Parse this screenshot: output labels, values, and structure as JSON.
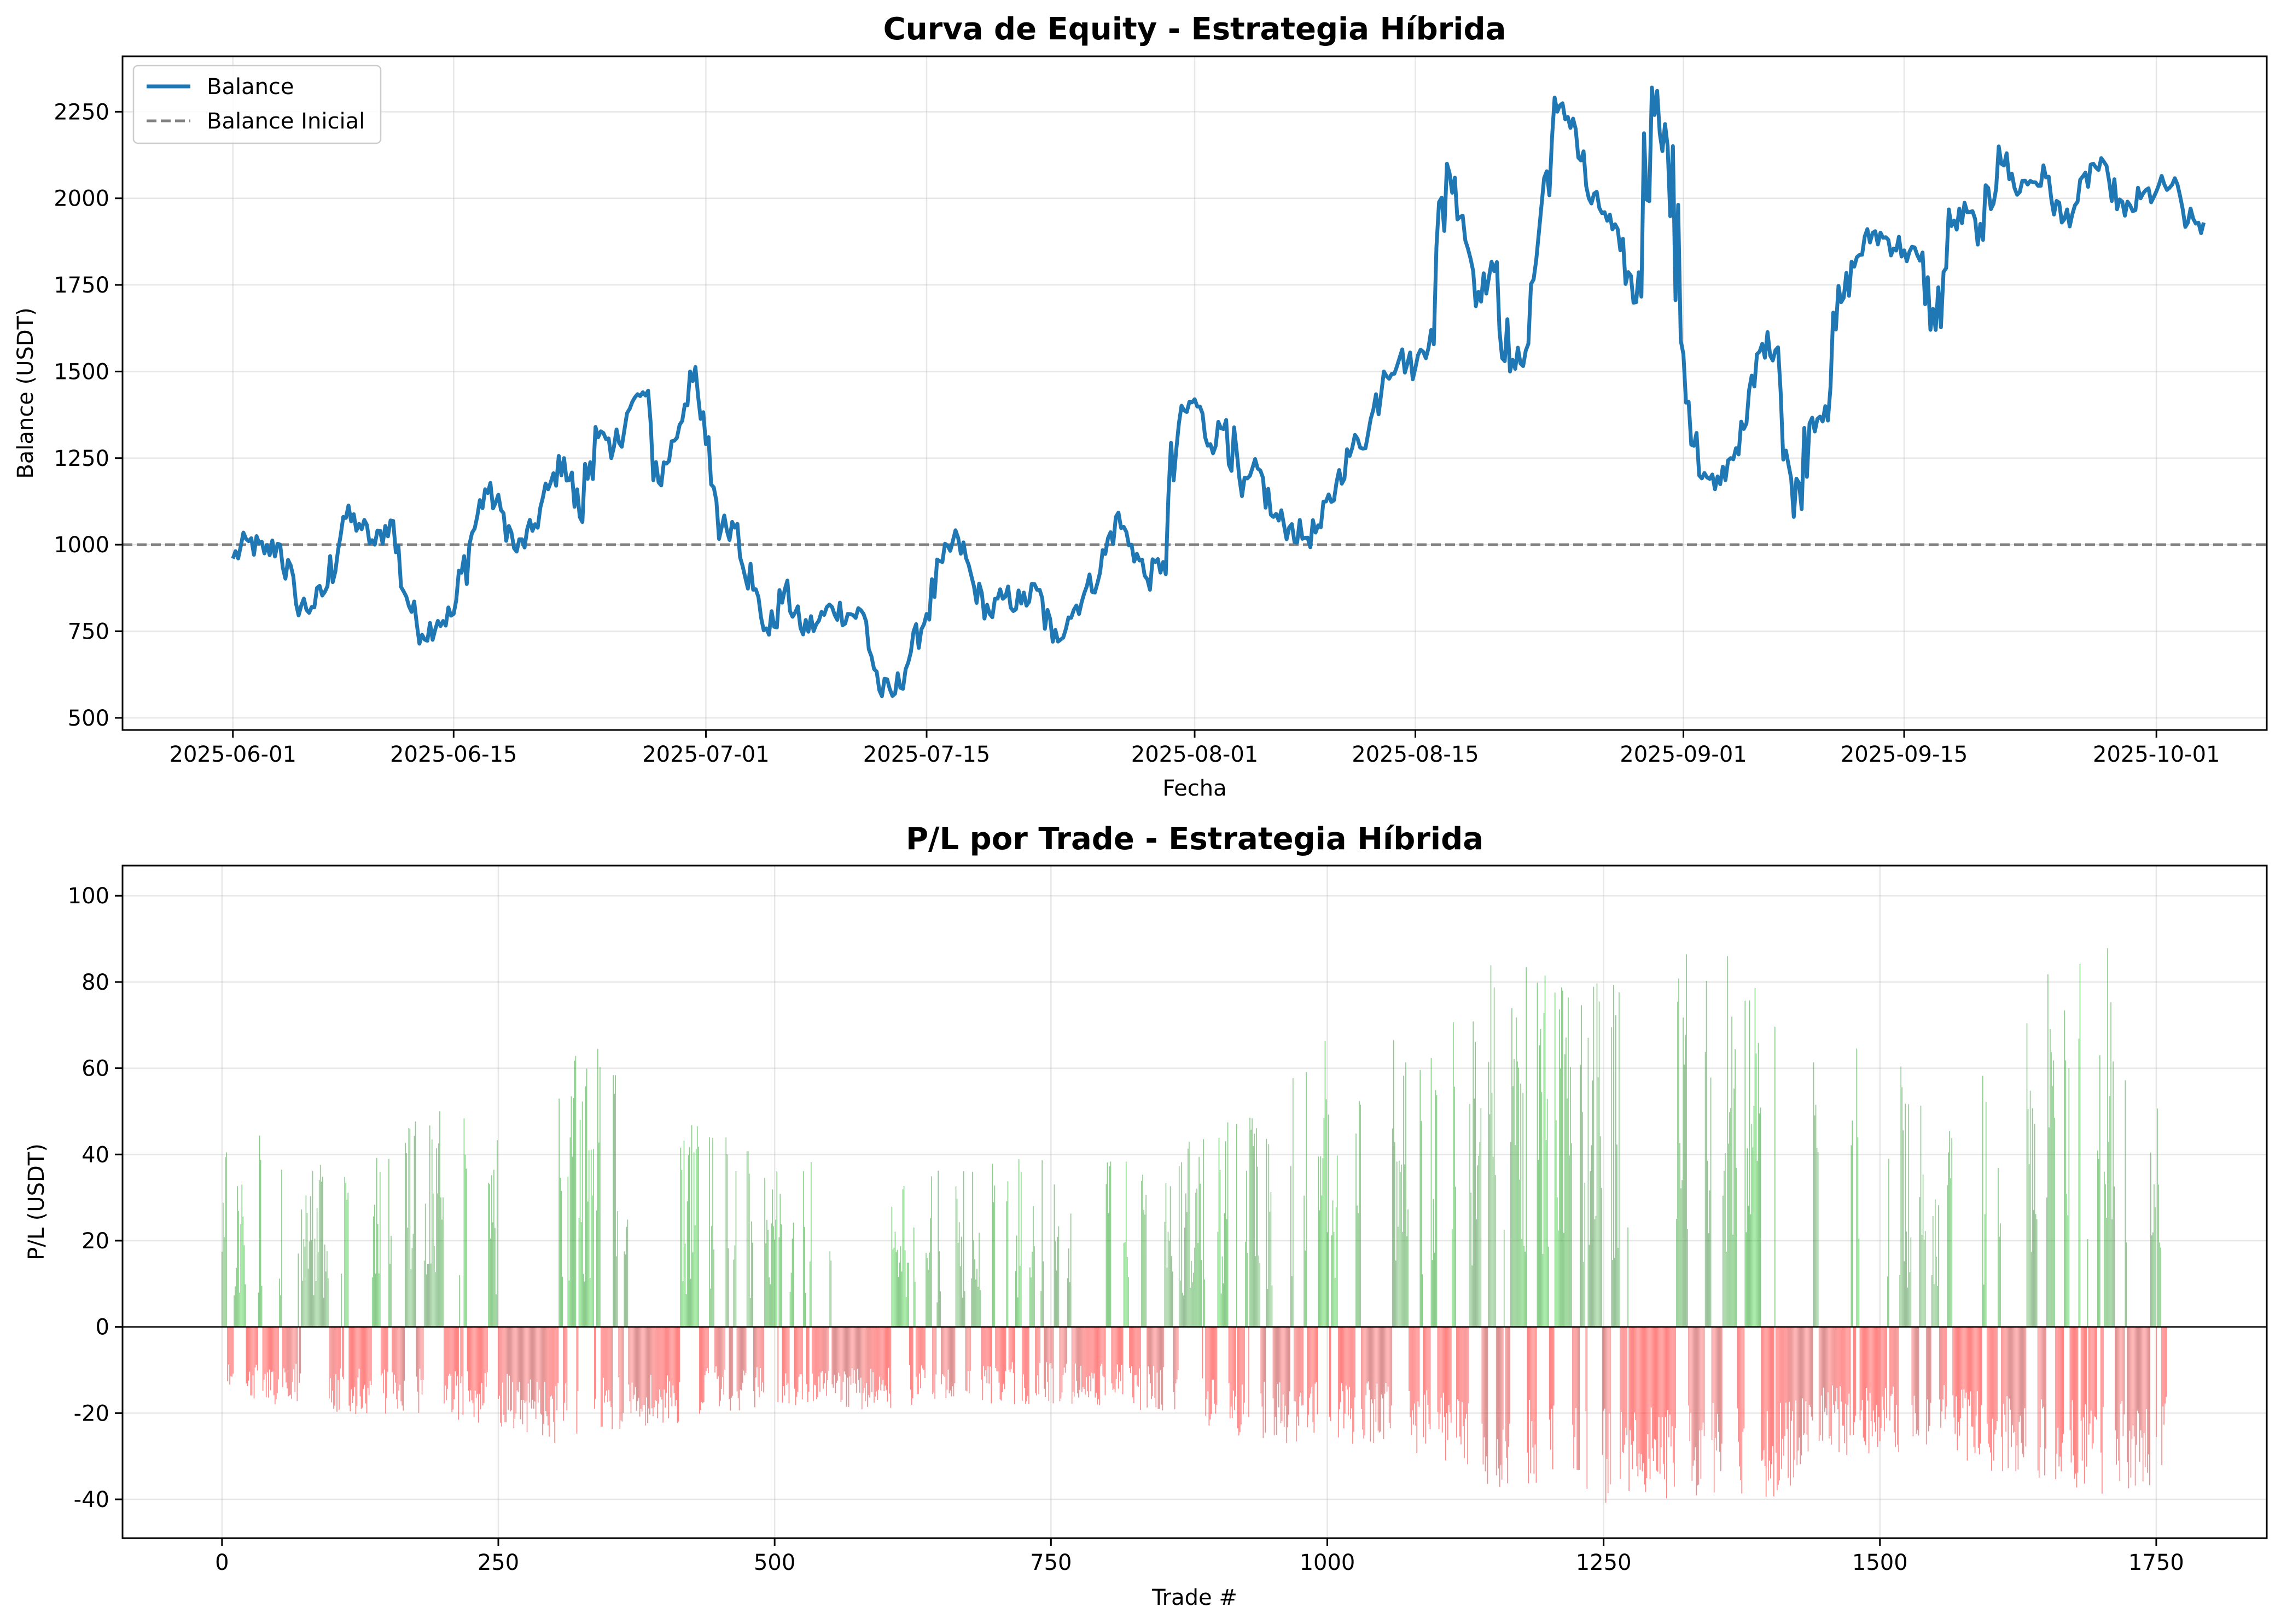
{
  "chart_data": [
    {
      "type": "line",
      "title": "Curva de Equity - Estrategia Híbrida",
      "xlabel": "Fecha",
      "ylabel": "Balance (USDT)",
      "x_ticks": [
        {
          "date": "2025-06-01",
          "label": "2025-06-01"
        },
        {
          "date": "2025-06-15",
          "label": "2025-06-15"
        },
        {
          "date": "2025-07-01",
          "label": "2025-07-01"
        },
        {
          "date": "2025-07-15",
          "label": "2025-07-15"
        },
        {
          "date": "2025-08-01",
          "label": "2025-08-01"
        },
        {
          "date": "2025-08-15",
          "label": "2025-08-15"
        },
        {
          "date": "2025-09-01",
          "label": "2025-09-01"
        },
        {
          "date": "2025-09-15",
          "label": "2025-09-15"
        },
        {
          "date": "2025-10-01",
          "label": "2025-10-01"
        }
      ],
      "x_range_days": [
        -7.0,
        129.0
      ],
      "y_ticks": [
        500,
        750,
        1000,
        1250,
        1500,
        1750,
        2000,
        2250
      ],
      "ylim": [
        465,
        2410
      ],
      "grid": true,
      "legend_position": "upper-left",
      "legend": [
        "Balance",
        "Balance Inicial"
      ],
      "series": [
        {
          "name": "Balance",
          "color": "#1f77b4",
          "x_days_from_2025-06-01": [
            0,
            1,
            2,
            3,
            4,
            5,
            6,
            7,
            8,
            9,
            10,
            11,
            12,
            13,
            14,
            15,
            16,
            17,
            18,
            19,
            20,
            21,
            22,
            23,
            24,
            25,
            26,
            27,
            28,
            29,
            30,
            31,
            32,
            33,
            34,
            35,
            36,
            37,
            38,
            39,
            40,
            41,
            42,
            43,
            44,
            45,
            46,
            47,
            48,
            49,
            50,
            51,
            52,
            53,
            54,
            55,
            56,
            57,
            58,
            59,
            60,
            61,
            62,
            63,
            64,
            65,
            66,
            67,
            68,
            69,
            70,
            71,
            72,
            73,
            74,
            75,
            76,
            77,
            78,
            79,
            80,
            81,
            82,
            83,
            84,
            85,
            86,
            87,
            88,
            89,
            90,
            91,
            92,
            93,
            94,
            95,
            96,
            97,
            98,
            99,
            100,
            101,
            102,
            103,
            104,
            105,
            106,
            107,
            108,
            109,
            110,
            111,
            112,
            113,
            114,
            115,
            116,
            117,
            118,
            119,
            120,
            121,
            122,
            123,
            124,
            125
          ],
          "values": [
            960,
            1010,
            975,
            1000,
            830,
            820,
            880,
            1080,
            1060,
            1000,
            1070,
            850,
            740,
            780,
            800,
            1000,
            1160,
            1100,
            980,
            1040,
            1160,
            1250,
            1080,
            1340,
            1250,
            1380,
            1440,
            1180,
            1300,
            1500,
            1290,
            1050,
            1060,
            870,
            740,
            870,
            760,
            770,
            820,
            800,
            800,
            580,
            570,
            690,
            800,
            950,
            1020,
            880,
            800,
            850,
            830,
            870,
            720,
            790,
            860,
            920,
            1080,
            1000,
            900,
            950,
            1350,
            1420,
            1290,
            1360,
            1140,
            1220,
            1080,
            1050,
            1020,
            1050,
            1180,
            1280,
            1320,
            1500,
            1540,
            1510,
            1620,
            2100,
            1950,
            1730,
            1790,
            1500,
            1560,
            1980,
            2250,
            2230,
            2000,
            1960,
            1850,
            1700,
            2320,
            2150,
            1550,
            1200,
            1160,
            1250,
            1350,
            1580,
            1570,
            1080,
            1350,
            1400,
            1700,
            1830,
            1900,
            1880,
            1850,
            1820,
            1620,
            1920,
            1960,
            1880,
            2150,
            2030,
            2050,
            2060,
            1930,
            1990,
            2100,
            2050,
            1950,
            2000,
            2020,
            2040,
            1930,
            1930
          ],
          "daily_ranges": "intraday noise approx ±60"
        },
        {
          "name": "Balance Inicial",
          "color": "#808080",
          "style": "dashed",
          "value": 1000
        }
      ]
    },
    {
      "type": "bar",
      "title": "P/L por Trade - Estrategia Híbrida",
      "xlabel": "Trade #",
      "ylabel": "P/L (USDT)",
      "x_ticks": [
        0,
        250,
        500,
        750,
        1000,
        1250,
        1500,
        1750
      ],
      "xlim": [
        -90,
        1850
      ],
      "y_ticks": [
        -40,
        -20,
        0,
        20,
        40,
        60,
        80,
        100
      ],
      "ylim": [
        -49,
        107
      ],
      "grid": true,
      "n_trades": 1760,
      "positive_color": "#2ca02c",
      "negative_color": "#ff3333",
      "win_envelope": {
        "trade": [
          0,
          50,
          100,
          150,
          200,
          250,
          300,
          350,
          400,
          450,
          500,
          550,
          600,
          650,
          700,
          750,
          800,
          850,
          900,
          950,
          1000,
          1050,
          1100,
          1150,
          1200,
          1250,
          1300,
          1350,
          1400,
          1450,
          1500,
          1550,
          1600,
          1650,
          1700,
          1760
        ],
        "max_pl": [
          44,
          45,
          36,
          48,
          52,
          50,
          64,
          66,
          52,
          46,
          38,
          42,
          34,
          38,
          46,
          40,
          40,
          38,
          48,
          58,
          70,
          68,
          70,
          86,
          82,
          86,
          89,
          100,
          78,
          60,
          68,
          50,
          60,
          86,
          94,
          44
        ]
      },
      "loss_envelope": {
        "trade": [
          0,
          50,
          100,
          150,
          200,
          250,
          300,
          350,
          400,
          450,
          500,
          550,
          600,
          650,
          700,
          750,
          800,
          850,
          900,
          950,
          1000,
          1050,
          1100,
          1150,
          1200,
          1250,
          1300,
          1350,
          1400,
          1450,
          1500,
          1550,
          1600,
          1650,
          1700,
          1760
        ],
        "min_pl": [
          -18,
          -18,
          -20,
          -21,
          -22,
          -23,
          -27,
          -24,
          -23,
          -20,
          -19,
          -18,
          -20,
          -18,
          -18,
          -18,
          -19,
          -20,
          -24,
          -27,
          -28,
          -28,
          -32,
          -38,
          -37,
          -42,
          -40,
          -39,
          -41,
          -30,
          -30,
          -28,
          -34,
          -36,
          -39,
          -36
        ]
      },
      "summary": "Each trade is a thin vertical bar: green above 0 for winning trades, red below 0 for losing trades."
    }
  ]
}
